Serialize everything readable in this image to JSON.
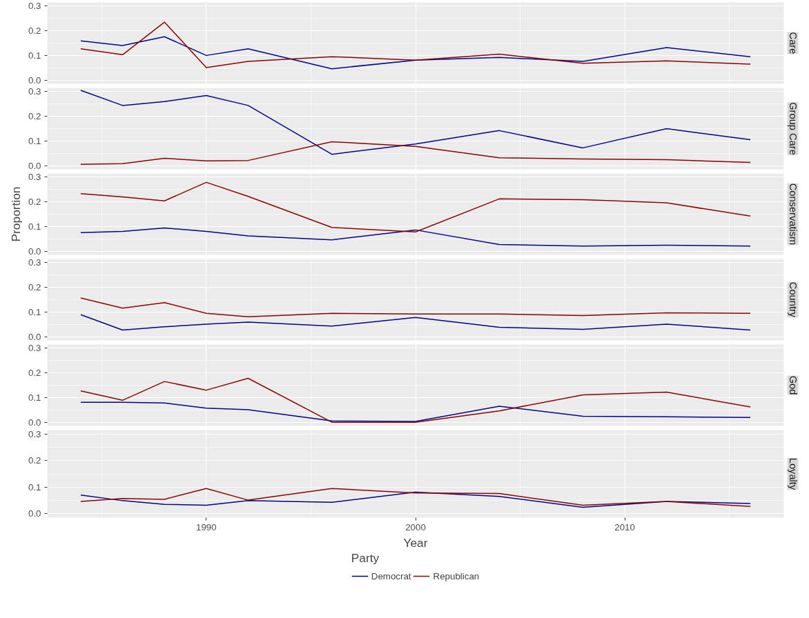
{
  "chart_data": [
    {
      "type": "line",
      "title": "Care",
      "x": [
        1984,
        1986,
        1988,
        1990,
        1992,
        1996,
        2000,
        2004,
        2008,
        2012,
        2016
      ],
      "xlim": [
        1982.4,
        2017.6
      ],
      "xticks": [
        1990,
        2000,
        2010
      ],
      "ylim": [
        -0.015,
        0.315
      ],
      "yticks": [
        {
          "value": 0,
          "label": "0.0"
        },
        {
          "value": 0.1,
          "label": "0.1"
        },
        {
          "value": 0.2,
          "label": "0.2"
        },
        {
          "value": 0.3,
          "label": "0.3"
        }
      ],
      "grid": true,
      "tick_labels": "y",
      "series": [
        {
          "color": "#00008b",
          "values": [
            0.159,
            0.14,
            0.176,
            0.1,
            0.127,
            0.046,
            0.081,
            0.092,
            0.076,
            0.132,
            0.095
          ]
        },
        {
          "color": "#8b0000",
          "values": [
            0.127,
            0.103,
            0.235,
            0.051,
            0.076,
            0.095,
            0.081,
            0.105,
            0.068,
            0.078,
            0.065
          ]
        }
      ]
    },
    {
      "type": "line",
      "title": "Group Care",
      "x": [
        1984,
        1986,
        1988,
        1990,
        1992,
        1996,
        2000,
        2004,
        2008,
        2012,
        2016
      ],
      "xlim": [
        1982.4,
        2017.6
      ],
      "xticks": [
        1990,
        2000,
        2010
      ],
      "ylim": [
        -0.015,
        0.315
      ],
      "yticks": [
        {
          "value": 0,
          "label": "0.0"
        },
        {
          "value": 0.1,
          "label": "0.1"
        },
        {
          "value": 0.2,
          "label": "0.2"
        },
        {
          "value": 0.3,
          "label": "0.3"
        }
      ],
      "grid": true,
      "tick_labels": "y",
      "series": [
        {
          "color": "#00008b",
          "values": [
            0.305,
            0.244,
            0.26,
            0.284,
            0.244,
            0.046,
            0.088,
            0.142,
            0.072,
            0.15,
            0.105
          ]
        },
        {
          "color": "#8b0000",
          "values": [
            0.005,
            0.008,
            0.03,
            0.019,
            0.021,
            0.097,
            0.078,
            0.032,
            0.027,
            0.024,
            0.013
          ]
        }
      ]
    },
    {
      "type": "line",
      "title": "Conservatism",
      "ylabel": "Proportion",
      "x": [
        1984,
        1986,
        1988,
        1990,
        1992,
        1996,
        2000,
        2004,
        2008,
        2012,
        2016
      ],
      "xlim": [
        1982.4,
        2017.6
      ],
      "xticks": [
        1990,
        2000,
        2010
      ],
      "ylim": [
        -0.015,
        0.315
      ],
      "yticks": [
        {
          "value": 0,
          "label": "0.0"
        },
        {
          "value": 0.1,
          "label": "0.1"
        },
        {
          "value": 0.2,
          "label": "0.2"
        },
        {
          "value": 0.3,
          "label": "0.3"
        }
      ],
      "grid": true,
      "tick_labels": "y",
      "series": [
        {
          "color": "#00008b",
          "values": [
            0.075,
            0.08,
            0.094,
            0.08,
            0.062,
            0.046,
            0.086,
            0.027,
            0.021,
            0.024,
            0.021
          ]
        },
        {
          "color": "#8b0000",
          "values": [
            0.233,
            0.22,
            0.204,
            0.279,
            0.222,
            0.096,
            0.078,
            0.212,
            0.209,
            0.196,
            0.142
          ]
        }
      ]
    },
    {
      "type": "line",
      "title": "Country",
      "x": [
        1984,
        1986,
        1988,
        1990,
        1992,
        1996,
        2000,
        2004,
        2008,
        2012,
        2016
      ],
      "xlim": [
        1982.4,
        2017.6
      ],
      "xticks": [
        1990,
        2000,
        2010
      ],
      "ylim": [
        -0.015,
        0.315
      ],
      "yticks": [
        {
          "value": 0,
          "label": "0.0"
        },
        {
          "value": 0.1,
          "label": "0.1"
        },
        {
          "value": 0.2,
          "label": "0.2"
        },
        {
          "value": 0.3,
          "label": "0.3"
        }
      ],
      "grid": true,
      "tick_labels": "y",
      "series": [
        {
          "color": "#00008b",
          "values": [
            0.089,
            0.027,
            0.04,
            0.051,
            0.059,
            0.043,
            0.078,
            0.038,
            0.03,
            0.051,
            0.027
          ]
        },
        {
          "color": "#8b0000",
          "values": [
            0.157,
            0.116,
            0.138,
            0.095,
            0.081,
            0.095,
            0.092,
            0.092,
            0.086,
            0.097,
            0.095
          ]
        }
      ]
    },
    {
      "type": "line",
      "title": "God",
      "x": [
        1984,
        1986,
        1988,
        1990,
        1992,
        1996,
        2000,
        2004,
        2008,
        2012,
        2016
      ],
      "xlim": [
        1982.4,
        2017.6
      ],
      "xticks": [
        1990,
        2000,
        2010
      ],
      "ylim": [
        -0.015,
        0.315
      ],
      "yticks": [
        {
          "value": 0,
          "label": "0.0"
        },
        {
          "value": 0.1,
          "label": "0.1"
        },
        {
          "value": 0.2,
          "label": "0.2"
        },
        {
          "value": 0.3,
          "label": "0.3"
        }
      ],
      "grid": true,
      "tick_labels": "y",
      "series": [
        {
          "color": "#00008b",
          "values": [
            0.081,
            0.081,
            0.078,
            0.057,
            0.051,
            0.005,
            0.003,
            0.065,
            0.024,
            0.022,
            0.019
          ]
        },
        {
          "color": "#8b0000",
          "values": [
            0.127,
            0.089,
            0.165,
            0.13,
            0.178,
            0.0,
            0.0,
            0.046,
            0.111,
            0.122,
            0.062
          ]
        }
      ]
    },
    {
      "type": "line",
      "title": "Loyalty",
      "xlabel": "Year",
      "legend_title": "Party",
      "legend": "bottom",
      "x": [
        1984,
        1986,
        1988,
        1990,
        1992,
        1996,
        2000,
        2004,
        2008,
        2012,
        2016
      ],
      "xlim": [
        1982.4,
        2017.6
      ],
      "xticks": [
        1990,
        2000,
        2010
      ],
      "ylim": [
        -0.015,
        0.315
      ],
      "yticks": [
        {
          "value": 0,
          "label": "0.0"
        },
        {
          "value": 0.1,
          "label": "0.1"
        },
        {
          "value": 0.2,
          "label": "0.2"
        },
        {
          "value": 0.3,
          "label": "0.3"
        }
      ],
      "grid": true,
      "series": [
        {
          "name": "Democrat",
          "color": "#00008b",
          "values": [
            0.07,
            0.049,
            0.035,
            0.032,
            0.049,
            0.043,
            0.081,
            0.065,
            0.024,
            0.046,
            0.038
          ]
        },
        {
          "name": "Republican",
          "color": "#8b0000",
          "values": [
            0.046,
            0.057,
            0.054,
            0.095,
            0.051,
            0.095,
            0.078,
            0.076,
            0.032,
            0.046,
            0.027
          ]
        }
      ]
    }
  ]
}
